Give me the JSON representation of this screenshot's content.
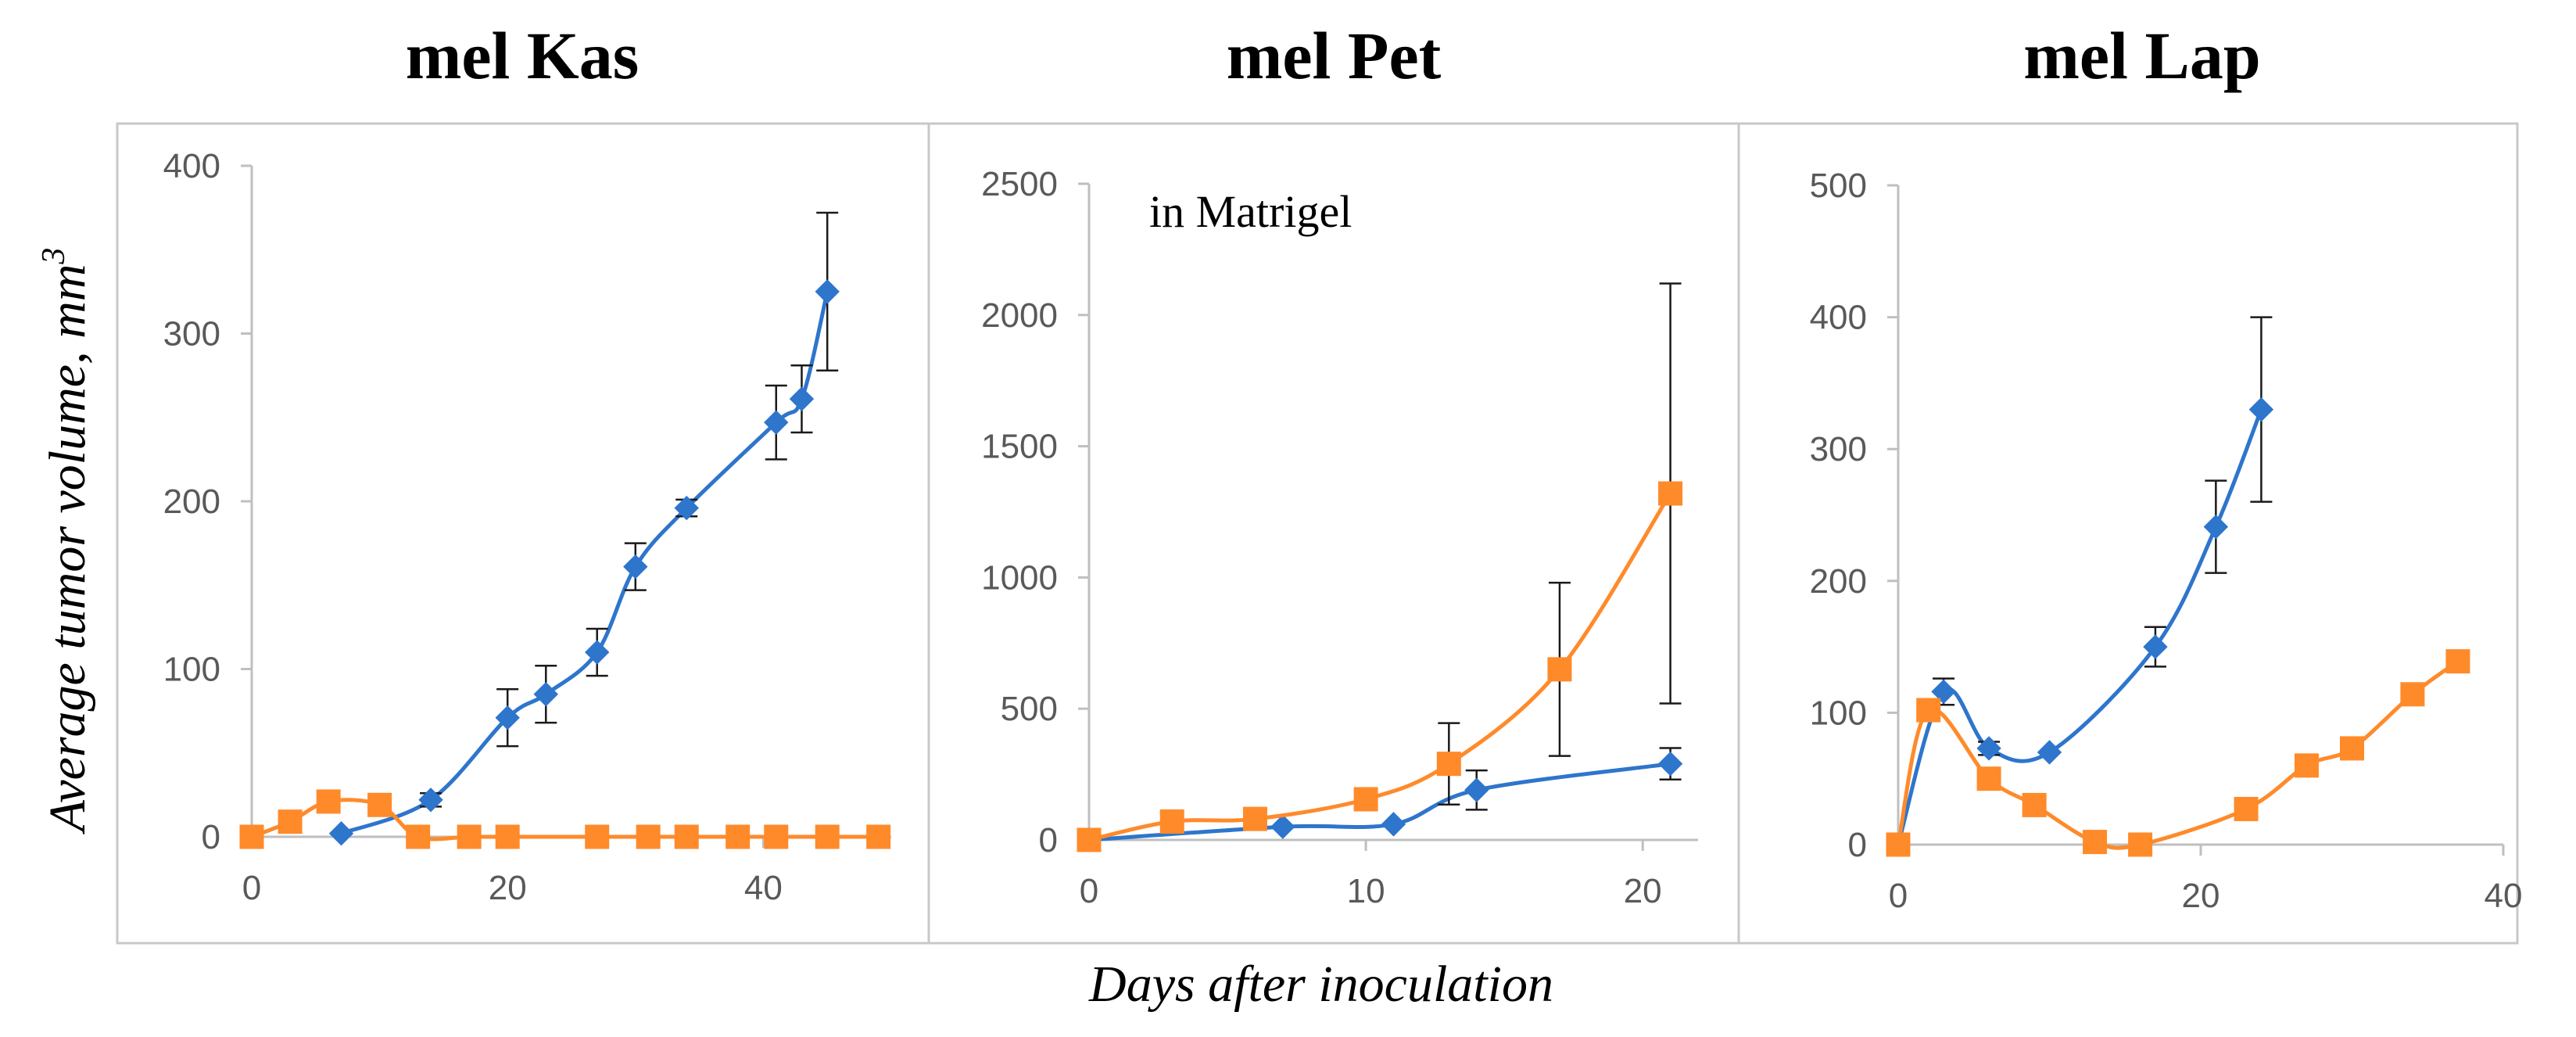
{
  "figure": {
    "ylabel": "Average tumor volume, mm",
    "ylabel_sup": "3",
    "xlabel": "Days after inoculation"
  },
  "colors": {
    "series_blue": "#2e75cc",
    "series_orange": "#ff8a2a",
    "error_bar": "#1a1a1a",
    "axis": "#bfbfbf",
    "frame": "#c8c8c8"
  },
  "chart_data": [
    {
      "type": "line",
      "title": "mel Kas",
      "annotation": "",
      "xlim": [
        0,
        50
      ],
      "ylim": [
        0,
        400
      ],
      "xticks": [
        0,
        20,
        40
      ],
      "yticks": [
        0,
        100,
        200,
        300,
        400
      ],
      "series": [
        {
          "color": "#2e75cc",
          "marker": "diamond",
          "x": [
            7,
            14,
            20,
            23,
            27,
            30,
            34,
            41,
            43,
            45
          ],
          "y": [
            2,
            22,
            71,
            85,
            110,
            161,
            196,
            247,
            261,
            325
          ],
          "err": [
            0,
            4,
            17,
            17,
            14,
            14,
            5,
            22,
            20,
            47
          ]
        },
        {
          "color": "#ff8a2a",
          "marker": "square",
          "x": [
            0,
            3,
            6,
            10,
            13,
            17,
            20,
            27,
            31,
            34,
            38,
            41,
            45,
            49
          ],
          "y": [
            0,
            9,
            21,
            19,
            0,
            0,
            0,
            0,
            0,
            0,
            0,
            0,
            0,
            0
          ],
          "err": [
            0,
            0,
            0,
            0,
            0,
            0,
            0,
            0,
            0,
            0,
            0,
            0,
            0,
            0
          ]
        }
      ]
    },
    {
      "type": "line",
      "title": "mel Pet",
      "annotation": "in Matrigel",
      "xlim": [
        0,
        22
      ],
      "ylim": [
        0,
        2500
      ],
      "xticks": [
        0,
        10,
        20
      ],
      "yticks": [
        0,
        500,
        1000,
        1500,
        2000,
        2500
      ],
      "series": [
        {
          "color": "#2e75cc",
          "marker": "diamond",
          "x": [
            0,
            7,
            11,
            14,
            21
          ],
          "y": [
            0,
            50,
            60,
            190,
            290
          ],
          "err": [
            0,
            0,
            0,
            75,
            60
          ]
        },
        {
          "color": "#ff8a2a",
          "marker": "square",
          "x": [
            0,
            3,
            6,
            10,
            13,
            17,
            21
          ],
          "y": [
            0,
            70,
            80,
            155,
            290,
            650,
            1320
          ],
          "err": [
            0,
            0,
            0,
            0,
            155,
            330,
            800
          ]
        }
      ]
    },
    {
      "type": "line",
      "title": "mel Lap",
      "annotation": "",
      "xlim": [
        0,
        40
      ],
      "ylim": [
        0,
        500
      ],
      "xticks": [
        0,
        20,
        40
      ],
      "yticks": [
        0,
        100,
        200,
        300,
        400,
        500
      ],
      "series": [
        {
          "color": "#2e75cc",
          "marker": "diamond",
          "x": [
            0,
            3,
            6,
            10,
            17,
            21,
            24
          ],
          "y": [
            0,
            116,
            73,
            70,
            150,
            241,
            330
          ],
          "err": [
            0,
            10,
            5,
            0,
            15,
            35,
            70
          ]
        },
        {
          "color": "#ff8a2a",
          "marker": "square",
          "x": [
            0,
            2,
            6,
            9,
            13,
            16,
            23,
            27,
            30,
            34,
            37
          ],
          "y": [
            0,
            102,
            50,
            30,
            2,
            0,
            27,
            60,
            73,
            114,
            139
          ],
          "err": [
            0,
            0,
            0,
            0,
            0,
            0,
            0,
            0,
            0,
            0,
            0
          ]
        }
      ]
    }
  ]
}
